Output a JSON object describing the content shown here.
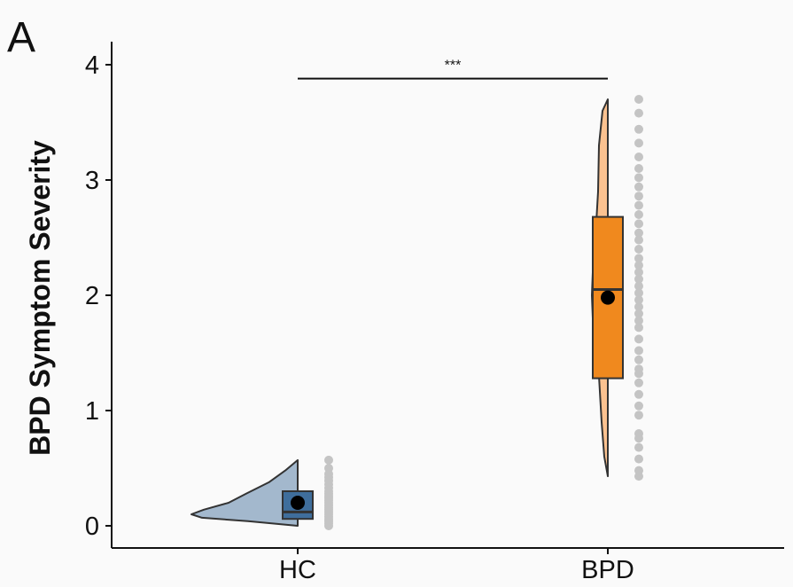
{
  "chart_data": {
    "type": "raincloud",
    "panel_label": "A",
    "ylabel": "BPD Symptom Severity",
    "xlabel": "",
    "ylim": [
      -0.2,
      4.2
    ],
    "yticks": [
      "0",
      "1",
      "2",
      "3",
      "4"
    ],
    "grid": false,
    "categories": [
      "HC",
      "BPD"
    ],
    "groups": [
      {
        "name": "HC",
        "color": "#3f6e9c",
        "violin_color": "#a3b8cd",
        "box": {
          "q1": 0.06,
          "median": 0.12,
          "q3": 0.3
        },
        "mean": 0.2,
        "violin_range": [
          0.0,
          0.57
        ],
        "points": [
          0.0,
          0.02,
          0.04,
          0.06,
          0.08,
          0.1,
          0.12,
          0.14,
          0.16,
          0.18,
          0.2,
          0.22,
          0.24,
          0.26,
          0.28,
          0.3,
          0.33,
          0.36,
          0.39,
          0.42,
          0.45,
          0.5,
          0.57
        ]
      },
      {
        "name": "BPD",
        "color": "#f0891e",
        "violin_color": "#fbc290",
        "box": {
          "q1": 1.28,
          "median": 2.05,
          "q3": 2.68
        },
        "mean": 1.98,
        "violin_range": [
          0.43,
          3.7
        ],
        "points": [
          0.43,
          0.48,
          0.58,
          0.68,
          0.76,
          0.8,
          0.96,
          1.04,
          1.14,
          1.24,
          1.32,
          1.36,
          1.44,
          1.52,
          1.62,
          1.72,
          1.78,
          1.84,
          1.9,
          1.96,
          2.02,
          2.08,
          2.14,
          2.2,
          2.26,
          2.32,
          2.4,
          2.48,
          2.54,
          2.62,
          2.7,
          2.78,
          2.86,
          2.94,
          3.02,
          3.1,
          3.2,
          3.32,
          3.44,
          3.58,
          3.7
        ]
      }
    ],
    "significance": {
      "label": "***",
      "from": "HC",
      "to": "BPD",
      "y": 3.88
    }
  }
}
